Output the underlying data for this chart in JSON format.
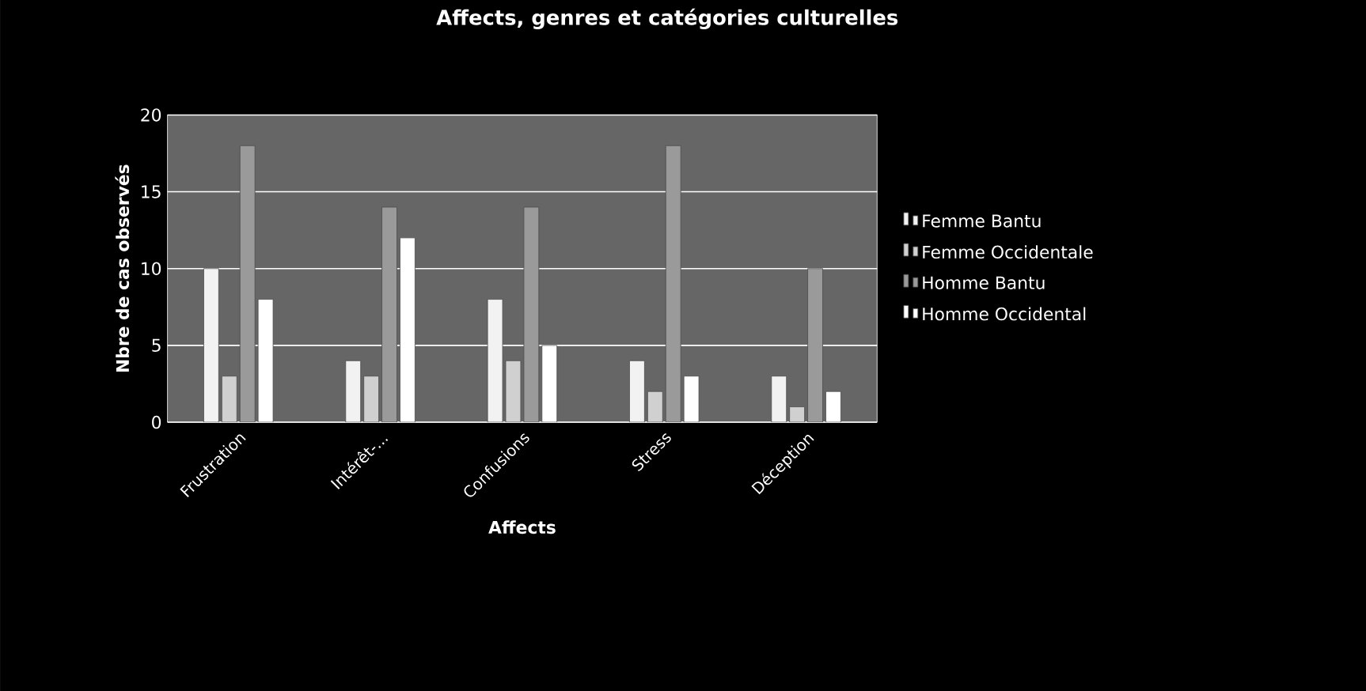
{
  "chart_data": {
    "type": "bar",
    "title": "Affects, genres et catégories culturelles",
    "xlabel": "Affects",
    "ylabel": "Nbre de cas observés",
    "categories": [
      "Frustration",
      "Intérêt-...",
      "Confusions",
      "Stress",
      "Déception"
    ],
    "series": [
      {
        "name": "Femme Bantu",
        "color": "#f2f2f2",
        "values": [
          10,
          4,
          8,
          4,
          3
        ]
      },
      {
        "name": "Femme Occidentale",
        "color": "#d0d0d0",
        "values": [
          3,
          3,
          4,
          2,
          1
        ]
      },
      {
        "name": "Homme Bantu",
        "color": "#9a9a9a",
        "values": [
          18,
          14,
          14,
          18,
          10
        ]
      },
      {
        "name": "Homme Occidental",
        "color": "#ffffff",
        "values": [
          8,
          12,
          5,
          3,
          2
        ]
      }
    ],
    "ylim": [
      0,
      20
    ],
    "yticks": [
      0,
      5,
      10,
      15,
      20
    ],
    "grid": "y",
    "legend": "right"
  }
}
